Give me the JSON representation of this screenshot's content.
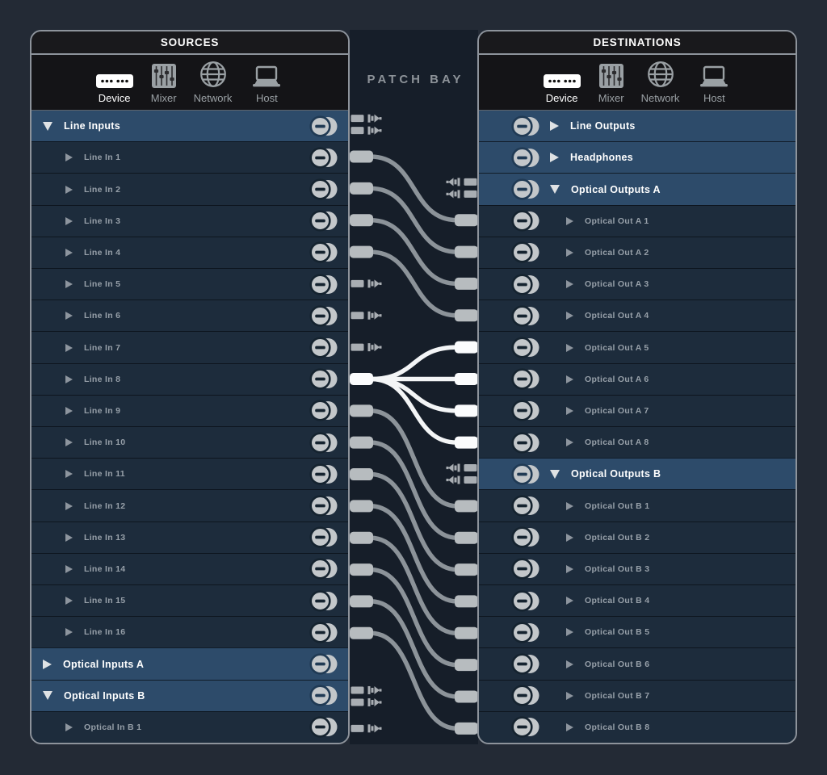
{
  "patchbay": {
    "title": "PATCH BAY"
  },
  "tabs": [
    {
      "id": "device",
      "label": "Device",
      "selected": true
    },
    {
      "id": "mixer",
      "label": "Mixer",
      "selected": false
    },
    {
      "id": "network",
      "label": "Network",
      "selected": false
    },
    {
      "id": "host",
      "label": "Host",
      "selected": false
    }
  ],
  "sources": {
    "title": "SOURCES",
    "rows": [
      {
        "label": "Line Inputs",
        "kind": "group",
        "state": "expanded",
        "stubs": 2
      },
      {
        "label": "Line In 1",
        "kind": "child",
        "stubs": 0
      },
      {
        "label": "Line In 2",
        "kind": "child",
        "stubs": 0
      },
      {
        "label": "Line In 3",
        "kind": "child",
        "stubs": 0
      },
      {
        "label": "Line In 4",
        "kind": "child",
        "stubs": 0
      },
      {
        "label": "Line In 5",
        "kind": "child",
        "stubs": 1
      },
      {
        "label": "Line In 6",
        "kind": "child",
        "stubs": 1
      },
      {
        "label": "Line In 7",
        "kind": "child",
        "stubs": 1
      },
      {
        "label": "Line In 8",
        "kind": "child",
        "stubs": 0
      },
      {
        "label": "Line In 9",
        "kind": "child",
        "stubs": 0
      },
      {
        "label": "Line In 10",
        "kind": "child",
        "stubs": 0
      },
      {
        "label": "Line In 11",
        "kind": "child",
        "stubs": 0
      },
      {
        "label": "Line In 12",
        "kind": "child",
        "stubs": 0
      },
      {
        "label": "Line In 13",
        "kind": "child",
        "stubs": 0
      },
      {
        "label": "Line In 14",
        "kind": "child",
        "stubs": 0
      },
      {
        "label": "Line In 15",
        "kind": "child",
        "stubs": 0
      },
      {
        "label": "Line In 16",
        "kind": "child",
        "stubs": 0
      },
      {
        "label": "Optical Inputs A",
        "kind": "group",
        "state": "collapsed",
        "stubs": 0
      },
      {
        "label": "Optical Inputs B",
        "kind": "group",
        "state": "expanded",
        "stubs": 2
      },
      {
        "label": "Optical In B 1",
        "kind": "child",
        "stubs": 1
      }
    ]
  },
  "destinations": {
    "title": "DESTINATIONS",
    "rows": [
      {
        "label": "Line Outputs",
        "kind": "group",
        "state": "collapsed",
        "stubs": 0
      },
      {
        "label": "Headphones",
        "kind": "group",
        "state": "collapsed",
        "stubs": 0
      },
      {
        "label": "Optical Outputs A",
        "kind": "group",
        "state": "expanded",
        "stubs": 2
      },
      {
        "label": "Optical Out A 1",
        "kind": "child",
        "stubs": 0
      },
      {
        "label": "Optical Out A 2",
        "kind": "child",
        "stubs": 0
      },
      {
        "label": "Optical Out A 3",
        "kind": "child",
        "stubs": 0
      },
      {
        "label": "Optical Out A 4",
        "kind": "child",
        "stubs": 0
      },
      {
        "label": "Optical Out A 5",
        "kind": "child",
        "stubs": 0
      },
      {
        "label": "Optical Out A 6",
        "kind": "child",
        "stubs": 0
      },
      {
        "label": "Optical Out A 7",
        "kind": "child",
        "stubs": 0
      },
      {
        "label": "Optical Out A 8",
        "kind": "child",
        "stubs": 0
      },
      {
        "label": "Optical Outputs B",
        "kind": "group",
        "state": "expanded",
        "stubs": 2
      },
      {
        "label": "Optical Out B 1",
        "kind": "child",
        "stubs": 0
      },
      {
        "label": "Optical Out B 2",
        "kind": "child",
        "stubs": 0
      },
      {
        "label": "Optical Out B 3",
        "kind": "child",
        "stubs": 0
      },
      {
        "label": "Optical Out B 4",
        "kind": "child",
        "stubs": 0
      },
      {
        "label": "Optical Out B 5",
        "kind": "child",
        "stubs": 0
      },
      {
        "label": "Optical Out B 6",
        "kind": "child",
        "stubs": 0
      },
      {
        "label": "Optical Out B 7",
        "kind": "child",
        "stubs": 0
      },
      {
        "label": "Optical Out B 8",
        "kind": "child",
        "stubs": 0
      }
    ]
  },
  "cables": [
    {
      "from": "Line In 1",
      "from_index": 1,
      "to": "Optical Out A 1",
      "to_index": 3,
      "highlight": false
    },
    {
      "from": "Line In 2",
      "from_index": 2,
      "to": "Optical Out A 2",
      "to_index": 4,
      "highlight": false
    },
    {
      "from": "Line In 3",
      "from_index": 3,
      "to": "Optical Out A 3",
      "to_index": 5,
      "highlight": false
    },
    {
      "from": "Line In 4",
      "from_index": 4,
      "to": "Optical Out A 4",
      "to_index": 6,
      "highlight": false
    },
    {
      "from": "Line In 8",
      "from_index": 8,
      "to": "Optical Out A 5",
      "to_index": 7,
      "highlight": true
    },
    {
      "from": "Line In 8",
      "from_index": 8,
      "to": "Optical Out A 6",
      "to_index": 8,
      "highlight": true
    },
    {
      "from": "Line In 8",
      "from_index": 8,
      "to": "Optical Out A 7",
      "to_index": 9,
      "highlight": true
    },
    {
      "from": "Line In 8",
      "from_index": 8,
      "to": "Optical Out A 8",
      "to_index": 10,
      "highlight": true
    },
    {
      "from": "Line In 9",
      "from_index": 9,
      "to": "Optical Out B 1",
      "to_index": 12,
      "highlight": false
    },
    {
      "from": "Line In 10",
      "from_index": 10,
      "to": "Optical Out B 2",
      "to_index": 13,
      "highlight": false
    },
    {
      "from": "Line In 11",
      "from_index": 11,
      "to": "Optical Out B 3",
      "to_index": 14,
      "highlight": false
    },
    {
      "from": "Line In 12",
      "from_index": 12,
      "to": "Optical Out B 4",
      "to_index": 15,
      "highlight": false
    },
    {
      "from": "Line In 13",
      "from_index": 13,
      "to": "Optical Out B 5",
      "to_index": 16,
      "highlight": false
    },
    {
      "from": "Line In 14",
      "from_index": 14,
      "to": "Optical Out B 6",
      "to_index": 17,
      "highlight": false
    },
    {
      "from": "Line In 15",
      "from_index": 15,
      "to": "Optical Out B 7",
      "to_index": 18,
      "highlight": false
    },
    {
      "from": "Line In 16",
      "from_index": 16,
      "to": "Optical Out B 8",
      "to_index": 19,
      "highlight": false
    }
  ],
  "colors": {
    "page_bg": "#232a35",
    "middle_bg": "#161e29",
    "row_bg": "#1d2c3c",
    "group_row_bg": "#2d4b6a",
    "panel_border": "#8d939b",
    "cable_gray": "#8c9399",
    "cable_highlight": "#f3f5f6",
    "plug_gray": "#b7bcbf",
    "plug_white": "#fbfcfd",
    "stub_gray": "#a9aeb3"
  }
}
